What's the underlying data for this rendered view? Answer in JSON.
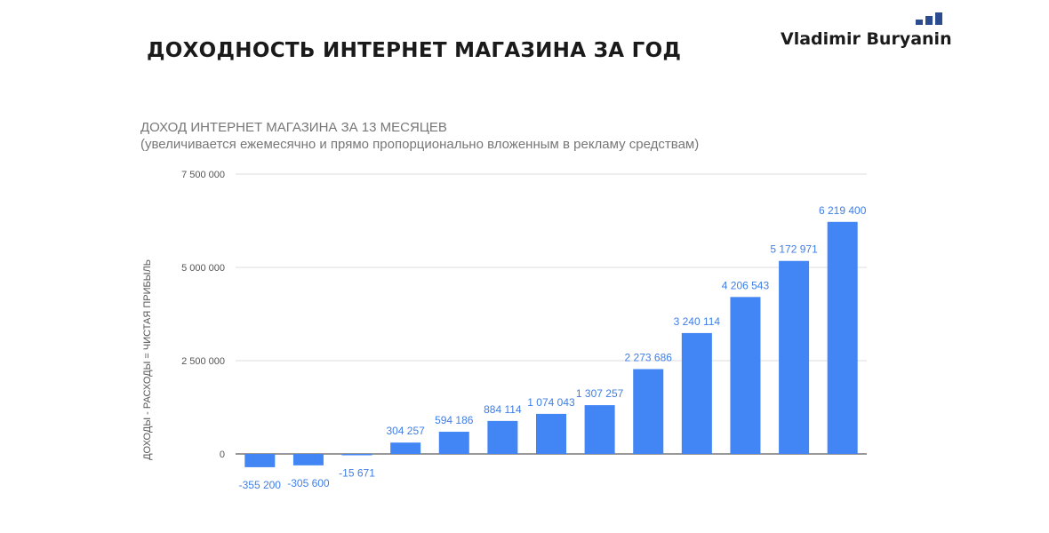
{
  "page": {
    "title": "ДОХОДНОСТЬ ИНТЕРНЕТ МАГАЗИНА ЗА ГОД",
    "brand": "Vladimir Buryanin"
  },
  "colors": {
    "bar": "#4285f4",
    "label": "#3f7ee8",
    "brand_mark": "#2b4d8f"
  },
  "chart_data": {
    "type": "bar",
    "title": "ДОХОД ИНТЕРНЕТ МАГАЗИНА ЗА 13 МЕСЯЦЕВ",
    "subtitle": "(увеличивается ежемесячно и прямо пропорционально вложенным в рекламу средствам)",
    "xlabel": "",
    "ylabel": "ДОХОДЫ - РАСХОДЫ = ЧИСТАЯ ПРИБЫЛЬ",
    "ylim": [
      -600000,
      7500000
    ],
    "yticks": [
      0,
      2500000,
      5000000,
      7500000
    ],
    "ytick_labels": [
      "0",
      "2 500 000",
      "5 000 000",
      "7 500 000"
    ],
    "grid": true,
    "values": [
      -355200,
      -305600,
      -15671,
      304257,
      594186,
      884114,
      1074043,
      1307257,
      2273686,
      3240114,
      4206543,
      5172971,
      6219400
    ],
    "labels": [
      "-355 200",
      "-305 600",
      "-15 671",
      "304 257",
      "594 186",
      "884 114",
      "1 074 043",
      "1 307 257",
      "2 273 686",
      "3 240 114",
      "4 206 543",
      "5 172 971",
      "6 219 400"
    ]
  }
}
